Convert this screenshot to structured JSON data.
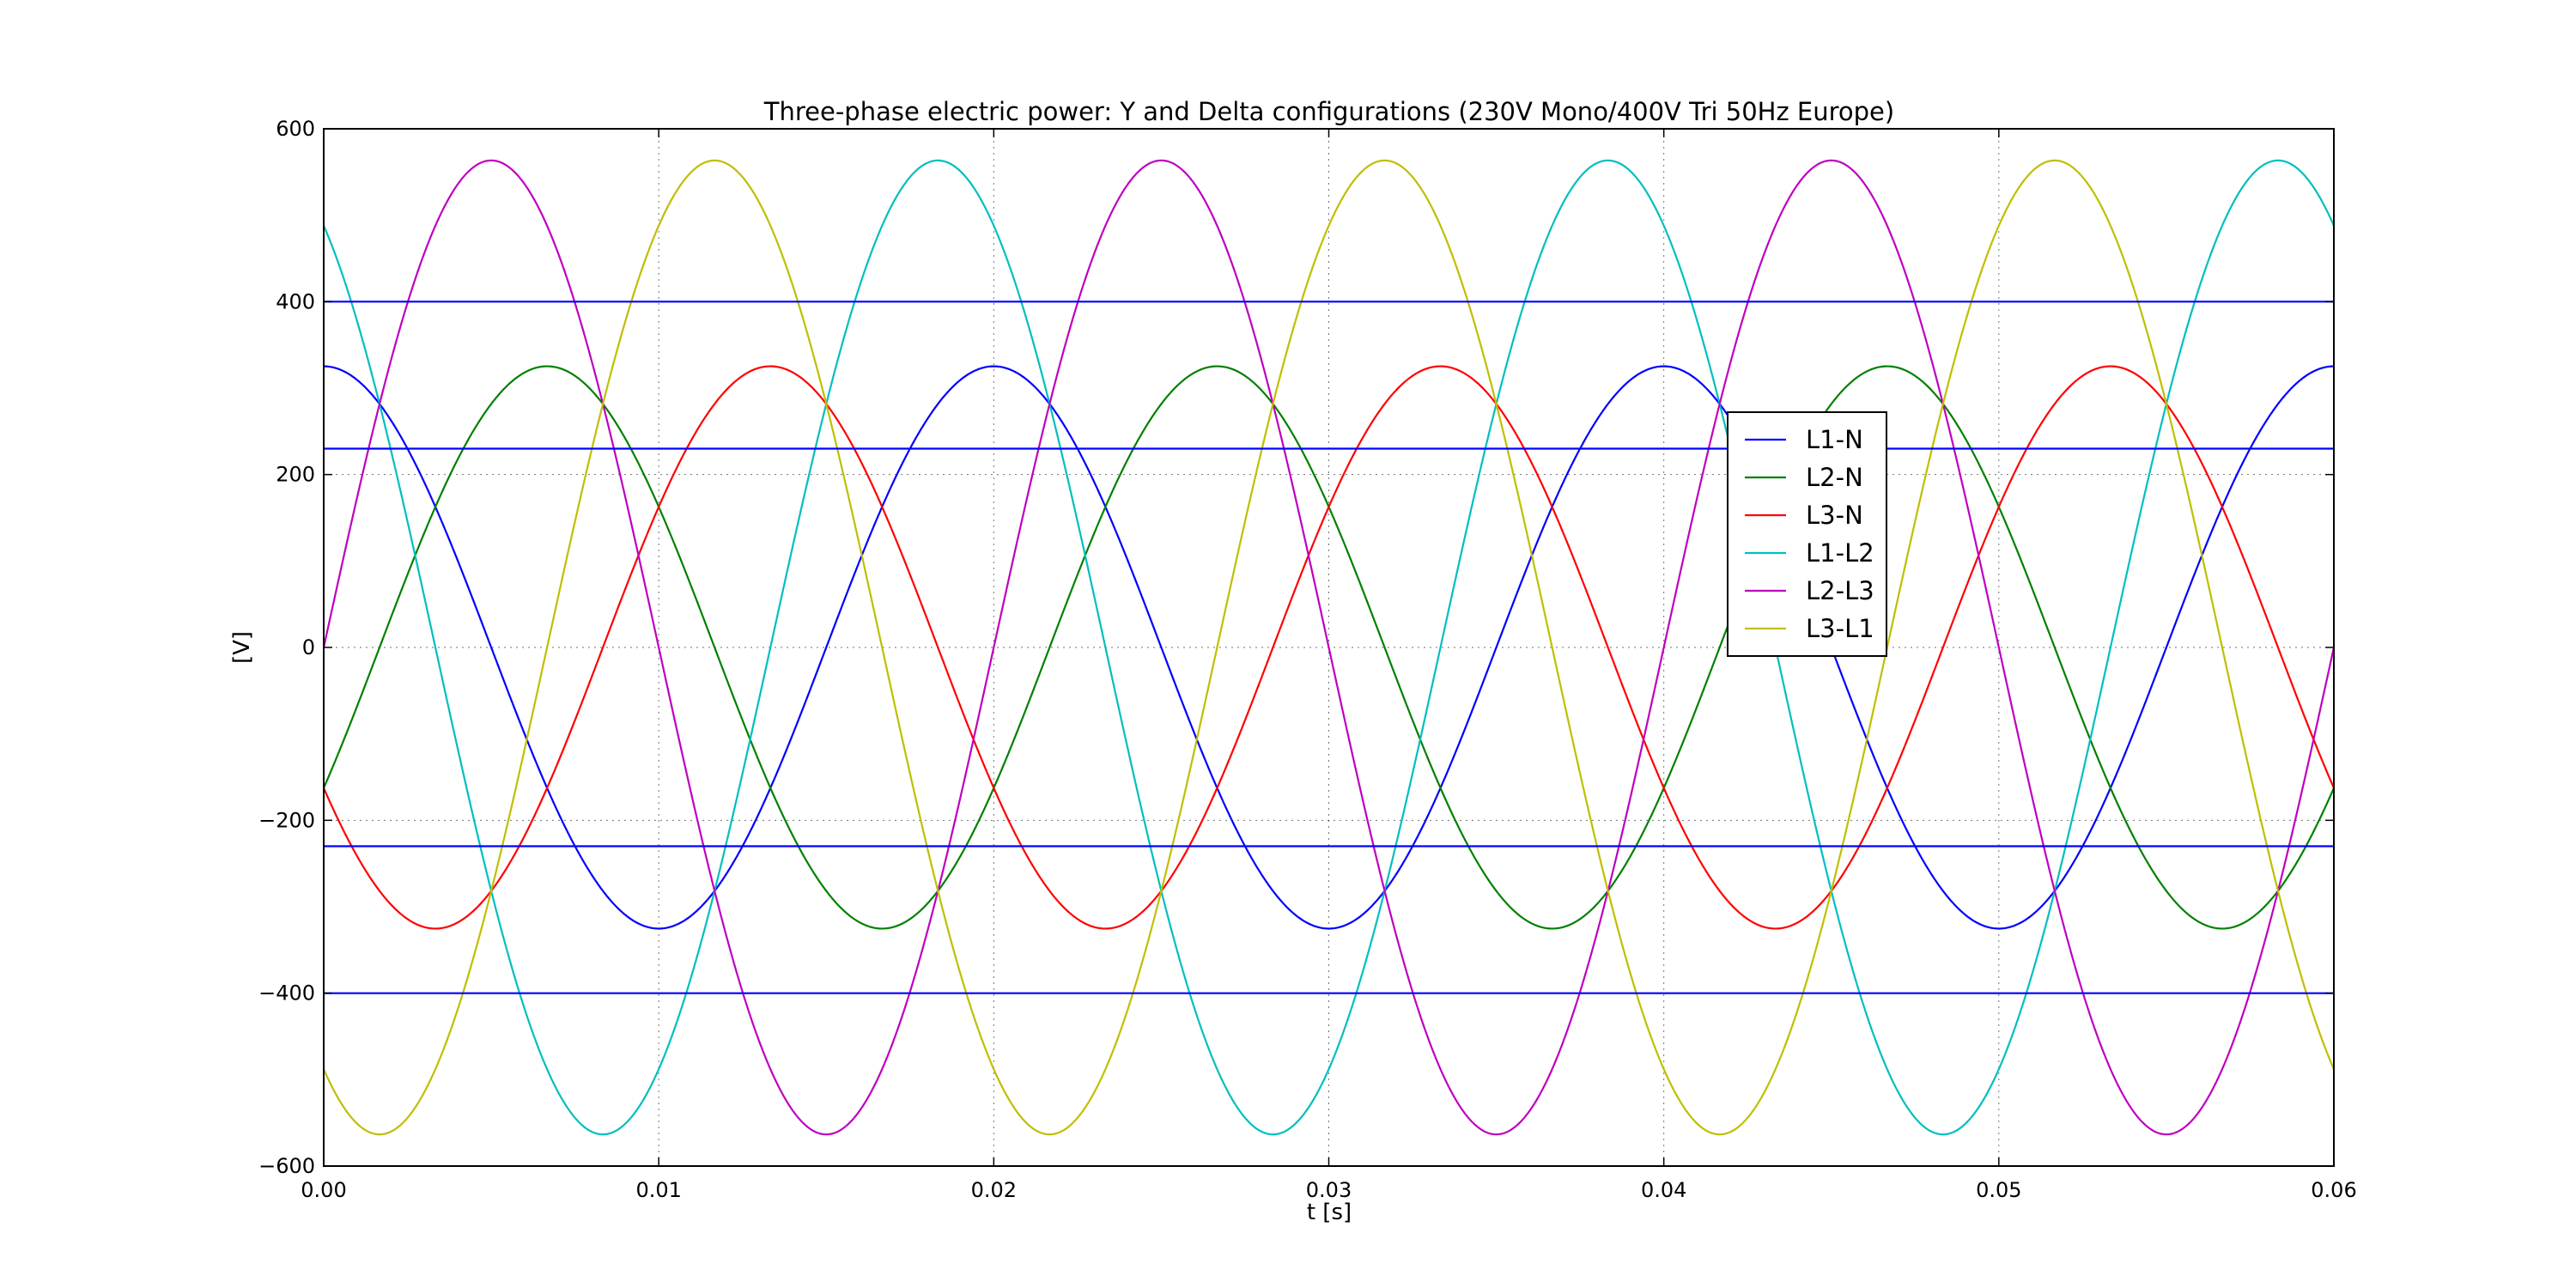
{
  "chart_data": {
    "type": "line",
    "title": "Three-phase electric power: Y and Delta configurations (230V Mono/400V Tri 50Hz Europe)",
    "xlabel": "t [s]",
    "ylabel": "[V]",
    "xlim": [
      0,
      0.06
    ],
    "ylim": [
      -600,
      600
    ],
    "xticks": [
      0.0,
      0.01,
      0.02,
      0.03,
      0.04,
      0.05,
      0.06
    ],
    "xtick_labels": [
      "0.00",
      "0.01",
      "0.02",
      "0.03",
      "0.04",
      "0.05",
      "0.06"
    ],
    "yticks": [
      -600,
      -400,
      -200,
      0,
      200,
      400,
      600
    ],
    "ytick_labels": [
      "−600",
      "−400",
      "−200",
      "0",
      "200",
      "400",
      "600"
    ],
    "grid": true,
    "legend_position": "center-right",
    "frequency_hz": 50,
    "series": [
      {
        "name": "L1-N",
        "color": "#0000ff",
        "amplitude": 325.27,
        "phase_deg": 90
      },
      {
        "name": "L2-N",
        "color": "#008000",
        "amplitude": 325.27,
        "phase_deg": -30
      },
      {
        "name": "L3-N",
        "color": "#ff0000",
        "amplitude": 325.27,
        "phase_deg": -150
      },
      {
        "name": "L1-L2",
        "color": "#00bfbf",
        "amplitude": 563.38,
        "phase_deg": 120
      },
      {
        "name": "L2-L3",
        "color": "#bf00bf",
        "amplitude": 563.38,
        "phase_deg": 0
      },
      {
        "name": "L3-L1",
        "color": "#bfbf00",
        "amplitude": 563.38,
        "phase_deg": -120
      }
    ],
    "reference_lines": [
      {
        "y": 400,
        "color": "#0000ff"
      },
      {
        "y": 230,
        "color": "#0000ff"
      },
      {
        "y": -230,
        "color": "#0000ff"
      },
      {
        "y": -400,
        "color": "#0000ff"
      }
    ]
  }
}
